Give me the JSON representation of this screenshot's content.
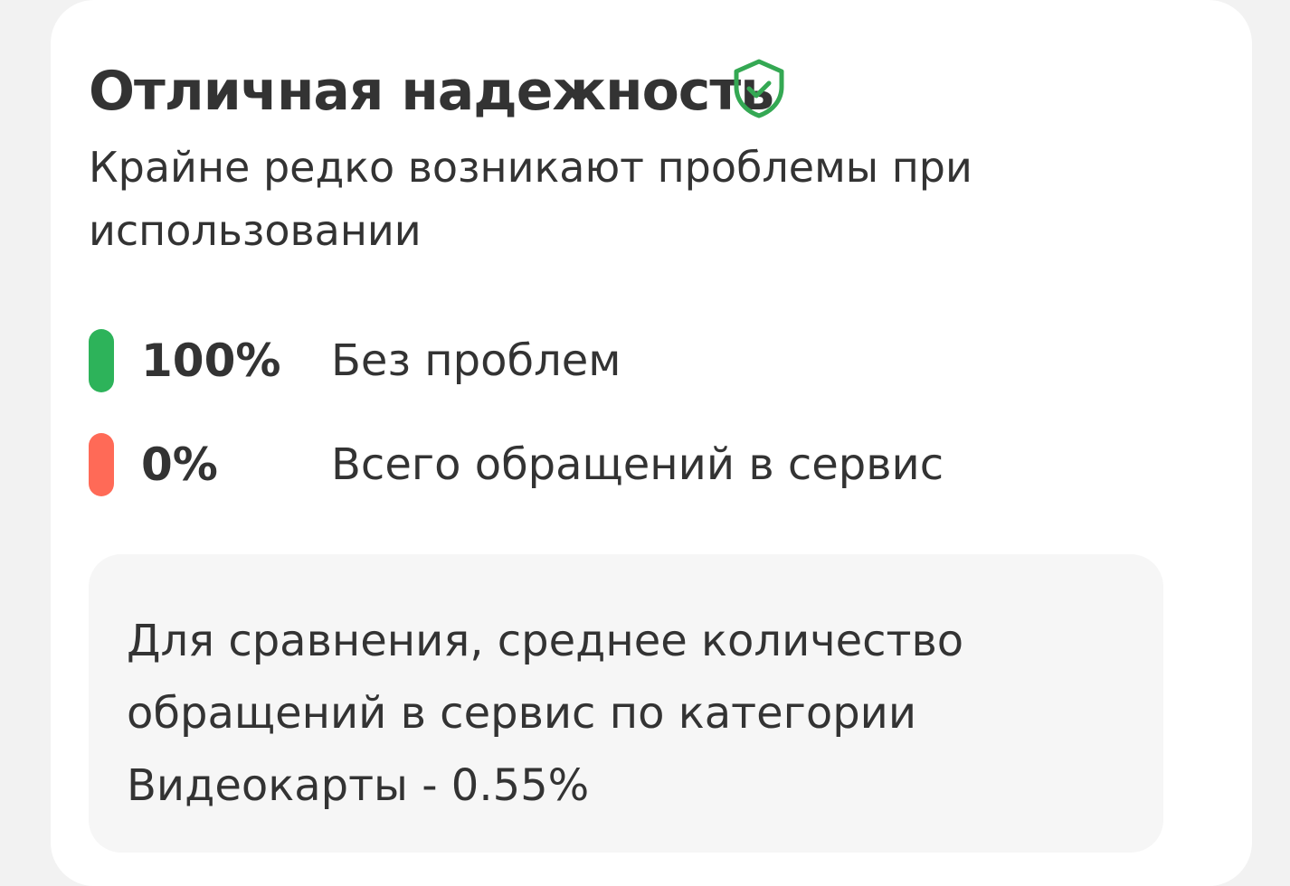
{
  "header": {
    "title": "Отличная надежность",
    "icon": "shield-check-icon",
    "subtitle": "Крайне редко возникают проблемы при использовании"
  },
  "stats": [
    {
      "value": "100%",
      "label": "Без проблем",
      "color": "#2db35a"
    },
    {
      "value": "0%",
      "label": "Всего обращений в сервис",
      "color": "#ff6a57"
    }
  ],
  "note": {
    "text": "Для сравнения, среднее количество обращений в сервис по категории Видеокарты - 0.55%"
  },
  "colors": {
    "accent": "#34a853"
  }
}
